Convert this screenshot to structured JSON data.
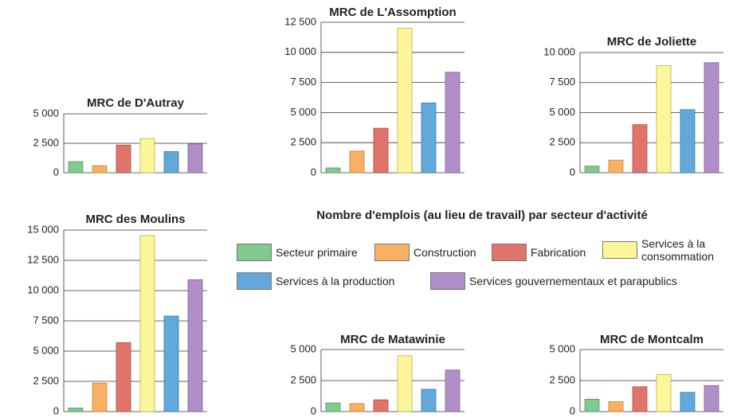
{
  "title": "Nombre d'emplois (au lieu de travail) par secteur d'activité",
  "legend": [
    {
      "name": "Secteur primaire",
      "color": "#80c98f"
    },
    {
      "name": "Construction",
      "color": "#f9b062"
    },
    {
      "name": "Fabrication",
      "color": "#e0746a"
    },
    {
      "name": "Services à la consommation",
      "color": "#fdf69a"
    },
    {
      "name": "Services à la production",
      "color": "#62a8db"
    },
    {
      "name": "Services gouvernementaux et parapublics",
      "color": "#b08fc8"
    }
  ],
  "chart_data": [
    {
      "type": "bar",
      "title": "MRC de D'Autray",
      "values": [
        950,
        600,
        2350,
        2900,
        1800,
        2450
      ],
      "ylim": [
        0,
        5000
      ],
      "yticks": [
        0,
        {
          "value": 2500,
          "label": "2 500"
        },
        {
          "value": 5000,
          "label": "5 000"
        }
      ],
      "grid": true
    },
    {
      "type": "bar",
      "title": "MRC de L'Assomption",
      "values": [
        400,
        1800,
        3700,
        12000,
        5800,
        8350
      ],
      "ylim": [
        0,
        12500
      ],
      "yticks": [
        0,
        {
          "value": 2500,
          "label": "2 500"
        },
        {
          "value": 5000,
          "label": "5 000"
        },
        {
          "value": 7500,
          "label": "7 500"
        },
        {
          "value": 10000,
          "label": "10 000"
        },
        {
          "value": 12500,
          "label": "12 500"
        }
      ],
      "grid": true
    },
    {
      "type": "bar",
      "title": "MRC de Joliette",
      "values": [
        550,
        1050,
        4000,
        8900,
        5250,
        9150
      ],
      "ylim": [
        0,
        10000
      ],
      "yticks": [
        0,
        {
          "value": 2500,
          "label": "2 500"
        },
        {
          "value": 5000,
          "label": "5 000"
        },
        {
          "value": 7500,
          "label": "7 500"
        },
        {
          "value": 10000,
          "label": "10 000"
        }
      ],
      "grid": true
    },
    {
      "type": "bar",
      "title": "MRC des Moulins",
      "values": [
        300,
        2350,
        5700,
        14550,
        7900,
        10900
      ],
      "ylim": [
        0,
        15000
      ],
      "yticks": [
        0,
        {
          "value": 2500,
          "label": "2 500"
        },
        {
          "value": 5000,
          "label": "5 000"
        },
        {
          "value": 7500,
          "label": "7 500"
        },
        {
          "value": 10000,
          "label": "10 000"
        },
        {
          "value": 12500,
          "label": "12 500"
        },
        {
          "value": 15000,
          "label": "15 000"
        }
      ],
      "grid": true
    },
    {
      "type": "bar",
      "title": "MRC de Matawinie",
      "values": [
        700,
        650,
        950,
        4500,
        1800,
        3350
      ],
      "ylim": [
        0,
        5000
      ],
      "yticks": [
        0,
        {
          "value": 2500,
          "label": "2 500"
        },
        {
          "value": 5000,
          "label": "5 000"
        }
      ],
      "grid": true
    },
    {
      "type": "bar",
      "title": "MRC de Montcalm",
      "values": [
        1000,
        800,
        2000,
        3000,
        1550,
        2100
      ],
      "ylim": [
        0,
        5000
      ],
      "yticks": [
        0,
        {
          "value": 2500,
          "label": "2 500"
        },
        {
          "value": 5000,
          "label": "5 000"
        }
      ],
      "grid": true
    }
  ]
}
